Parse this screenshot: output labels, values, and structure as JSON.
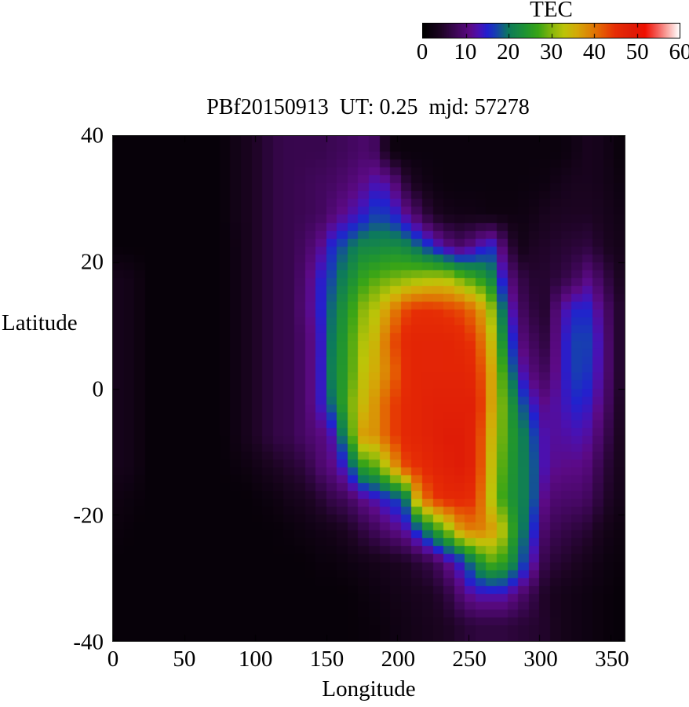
{
  "title": "PBf20150913  UT: 0.25  mjd: 57278",
  "colorbar": {
    "label": "TEC",
    "min": 0,
    "max": 60,
    "ticks": [
      0,
      10,
      20,
      30,
      40,
      50,
      60
    ]
  },
  "axes": {
    "x": {
      "label": "Longitude",
      "range": [
        0,
        360
      ],
      "ticks": [
        0,
        50,
        100,
        150,
        200,
        250,
        300,
        350
      ]
    },
    "y": {
      "label": "Latitude",
      "range": [
        -40,
        40
      ],
      "ticks": [
        40,
        20,
        0,
        -20,
        -40
      ]
    }
  },
  "chart_data": {
    "type": "heatmap",
    "title": "PBf20150913  UT: 0.25  mjd: 57278",
    "xlabel": "Longitude",
    "ylabel": "Latitude",
    "xlim": [
      0,
      360
    ],
    "ylim": [
      -40,
      40
    ],
    "grid": false,
    "colorbar_label": "TEC",
    "colorbar_range": [
      0,
      60
    ],
    "colormap_stops": [
      [
        0,
        "#000000"
      ],
      [
        4,
        "#1c0422"
      ],
      [
        8,
        "#41075c"
      ],
      [
        11,
        "#5c0a86"
      ],
      [
        13,
        "#4a11b2"
      ],
      [
        15,
        "#2121cf"
      ],
      [
        17,
        "#173fb0"
      ],
      [
        20,
        "#0d7a5c"
      ],
      [
        24,
        "#1f9431"
      ],
      [
        27,
        "#3aa516"
      ],
      [
        30,
        "#84b50c"
      ],
      [
        33,
        "#bcc408"
      ],
      [
        36,
        "#d4a907"
      ],
      [
        39,
        "#dd8405"
      ],
      [
        42,
        "#e55a03"
      ],
      [
        45,
        "#e62d05"
      ],
      [
        49,
        "#df1c06"
      ],
      [
        52,
        "#f01000"
      ],
      [
        55,
        "#f4615c"
      ],
      [
        57,
        "#f9a09b"
      ],
      [
        60,
        "#ffffff"
      ]
    ],
    "lon_cell_deg": 10,
    "lat_cell_deg": 5,
    "lon_edges_note": "columns are 10-degree longitude bands from 0 to 360",
    "lat_edges_note": "rows are 5-degree latitude bands from +40 down to -40",
    "values": [
      [
        1,
        1,
        1,
        1,
        1,
        1,
        1,
        1,
        2.5,
        3.5,
        5,
        6.5,
        7,
        7,
        7,
        7.5,
        8,
        9,
        8,
        2,
        1.5,
        1.5,
        1.5,
        1.5,
        1.5,
        1.5,
        1.5,
        1.5,
        1.5,
        1.5,
        1.5,
        1.5,
        2.5,
        3.5,
        3,
        1.5
      ],
      [
        1,
        1,
        1,
        1,
        1,
        1,
        1,
        1,
        2.5,
        3.5,
        5,
        6.5,
        7,
        7.5,
        8,
        8.5,
        9.5,
        11,
        13,
        12,
        6,
        3,
        2,
        1.5,
        1.5,
        1.5,
        1.5,
        1.5,
        1.5,
        1.8,
        2,
        3,
        3.5,
        3.5,
        3,
        2
      ],
      [
        1,
        1,
        1,
        1,
        1,
        1,
        1,
        1,
        2.5,
        3.5,
        5,
        6.5,
        7,
        7.5,
        8,
        10,
        12,
        14,
        17,
        16,
        12,
        8,
        4,
        3,
        2.5,
        2.5,
        2,
        2,
        2,
        2.5,
        3.5,
        4,
        4,
        4,
        3.5,
        2.5
      ],
      [
        1,
        1,
        1,
        1,
        1,
        1,
        1,
        1,
        2,
        3.5,
        5,
        6.5,
        7,
        8.5,
        11,
        16,
        19,
        22,
        22,
        23,
        22,
        19,
        15,
        11,
        9,
        12,
        16,
        9,
        2.5,
        4,
        4.5,
        5,
        5.5,
        6,
        4,
        3
      ],
      [
        3,
        2.5,
        1,
        1,
        1,
        1,
        1,
        1,
        2,
        3.5,
        5,
        6.5,
        7,
        9.5,
        14,
        18,
        22,
        26,
        28,
        29,
        30,
        31,
        32,
        32,
        29,
        26,
        23,
        13,
        7,
        5,
        5,
        6,
        8,
        11,
        7,
        4
      ],
      [
        3,
        2.5,
        1,
        1,
        1,
        1,
        1,
        1,
        2,
        3.5,
        5,
        6.5,
        7,
        10,
        14,
        20,
        25,
        30,
        33,
        38,
        43,
        45,
        45,
        44,
        43,
        40,
        33,
        18,
        9,
        6,
        5,
        12,
        15,
        15,
        10,
        5
      ],
      [
        3,
        2.5,
        1,
        1,
        1,
        1,
        1,
        1,
        2,
        3.5,
        5,
        6.5,
        7,
        9,
        13,
        21,
        26,
        32,
        35,
        42,
        46,
        47,
        47,
        47,
        46,
        44,
        36,
        22,
        11,
        8,
        6,
        13,
        17,
        17,
        11,
        5
      ],
      [
        3,
        2.5,
        1,
        1,
        1,
        1,
        1,
        1,
        2,
        3.5,
        5,
        6.5,
        7,
        9,
        13,
        22,
        26,
        33,
        36,
        40,
        45,
        47,
        47,
        47,
        47,
        46,
        38,
        26,
        14,
        10,
        8,
        13,
        17,
        16,
        11,
        5
      ],
      [
        3,
        2.5,
        1,
        1,
        1,
        1,
        1,
        1,
        2,
        3.5,
        5,
        6.5,
        7,
        9,
        13,
        20,
        28,
        34,
        38,
        43,
        46,
        47,
        48,
        48,
        48,
        48,
        38,
        28,
        20,
        14,
        11,
        13,
        15,
        14,
        10,
        4.5
      ],
      [
        3,
        2.5,
        1,
        1,
        1,
        1,
        1,
        1,
        2,
        3.5,
        5,
        6.5,
        7,
        9,
        10,
        13,
        24,
        37,
        38,
        43,
        46,
        47,
        48,
        49,
        49,
        47,
        36,
        28,
        22,
        18,
        12,
        12,
        13,
        12,
        8,
        4
      ],
      [
        3,
        2.5,
        1,
        1,
        1,
        1,
        1,
        1,
        1.5,
        2,
        3,
        4,
        5,
        6,
        9,
        11,
        15,
        25,
        28,
        35,
        43,
        45,
        47,
        48,
        49,
        47,
        35,
        27,
        22,
        19,
        12,
        11,
        11,
        10,
        6,
        3.5
      ],
      [
        2,
        1.5,
        1,
        1,
        1,
        1,
        1,
        1,
        1,
        1,
        1.5,
        2,
        3,
        3.5,
        5,
        7,
        8,
        11,
        13,
        16,
        18,
        38,
        44,
        46,
        46,
        45,
        34,
        26,
        22,
        19,
        10,
        9,
        9,
        8,
        5,
        3
      ],
      [
        1.5,
        1,
        1,
        1,
        1,
        1,
        1,
        1,
        1,
        1,
        1,
        1.2,
        1.5,
        2,
        2.5,
        3,
        4,
        6,
        8,
        10,
        12,
        17,
        24,
        30,
        38,
        40,
        38,
        32,
        22,
        16,
        8,
        7,
        6,
        5,
        3,
        2
      ],
      [
        1,
        1,
        1,
        1,
        1,
        1,
        1,
        1,
        1,
        1,
        1,
        1,
        1,
        1,
        1.5,
        1.5,
        2,
        2.5,
        3,
        3.5,
        4,
        5.5,
        7,
        11,
        15,
        22,
        28,
        26,
        20,
        13,
        6,
        5,
        4,
        3,
        2,
        1.5
      ],
      [
        1,
        1,
        1,
        1,
        1,
        1,
        1,
        1,
        1,
        1,
        1,
        1,
        1,
        1,
        1,
        1,
        1,
        1.5,
        2,
        2.5,
        3,
        3.5,
        4,
        6,
        10,
        13,
        13,
        13,
        10,
        7,
        4,
        3,
        2.5,
        2,
        1.5,
        1
      ],
      [
        1,
        1,
        1,
        1,
        1,
        1,
        1,
        1,
        1,
        1,
        1,
        1,
        1,
        1,
        1,
        1,
        1,
        1.2,
        1.5,
        2,
        2.5,
        3,
        3.5,
        4,
        5,
        6,
        6,
        6,
        5.5,
        5,
        4.5,
        3,
        2.5,
        2,
        1.5,
        1
      ]
    ]
  }
}
